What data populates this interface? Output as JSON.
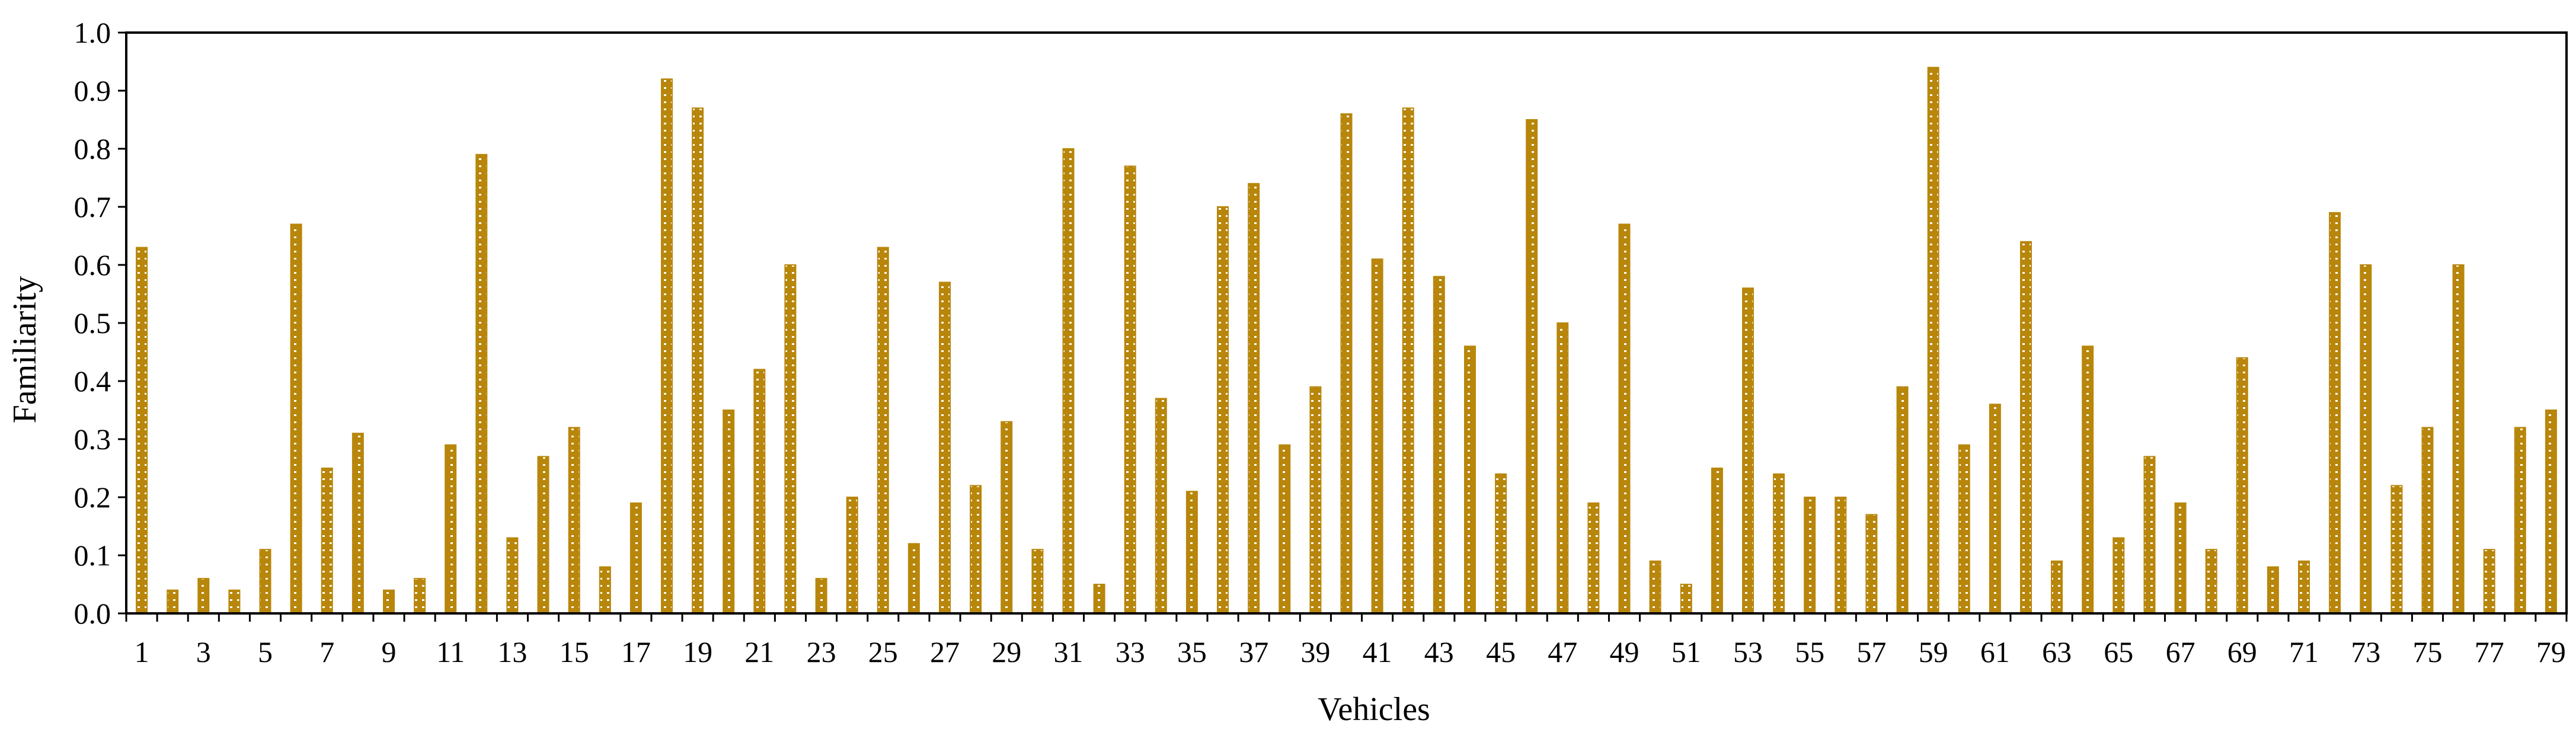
{
  "chart_data": {
    "type": "bar",
    "xlabel": "Vehicles",
    "ylabel": "Familiarity",
    "ylim": [
      0,
      1
    ],
    "yticks": [
      "0.0",
      "0.1",
      "0.2",
      "0.3",
      "0.4",
      "0.5",
      "0.6",
      "0.7",
      "0.8",
      "0.9",
      "1.0"
    ],
    "categories": [
      1,
      2,
      3,
      4,
      5,
      6,
      7,
      8,
      9,
      10,
      11,
      12,
      13,
      14,
      15,
      16,
      17,
      18,
      19,
      20,
      21,
      22,
      23,
      24,
      25,
      26,
      27,
      28,
      29,
      30,
      31,
      32,
      33,
      34,
      35,
      36,
      37,
      38,
      39,
      40,
      41,
      42,
      43,
      44,
      45,
      46,
      47,
      48,
      49,
      50,
      51,
      52,
      53,
      54,
      55,
      56,
      57,
      58,
      59,
      60,
      61,
      62,
      63,
      64,
      65,
      66,
      67,
      68,
      69,
      70,
      71,
      72,
      73,
      74,
      75,
      76,
      77,
      78,
      79
    ],
    "xtick_labels_shown": [
      1,
      3,
      5,
      7,
      9,
      11,
      13,
      15,
      17,
      19,
      21,
      23,
      25,
      27,
      29,
      31,
      33,
      35,
      37,
      39,
      41,
      43,
      45,
      47,
      49,
      51,
      53,
      55,
      57,
      59,
      61,
      63,
      65,
      67,
      69,
      71,
      73,
      75,
      77,
      79
    ],
    "values": [
      0.63,
      0.04,
      0.06,
      0.04,
      0.11,
      0.67,
      0.25,
      0.31,
      0.04,
      0.06,
      0.29,
      0.79,
      0.13,
      0.27,
      0.32,
      0.08,
      0.19,
      0.92,
      0.87,
      0.35,
      0.42,
      0.6,
      0.06,
      0.2,
      0.63,
      0.12,
      0.57,
      0.22,
      0.33,
      0.11,
      0.8,
      0.05,
      0.77,
      0.37,
      0.21,
      0.7,
      0.74,
      0.29,
      0.39,
      0.86,
      0.61,
      0.87,
      0.58,
      0.46,
      0.24,
      0.85,
      0.5,
      0.19,
      0.67,
      0.09,
      0.05,
      0.25,
      0.56,
      0.24,
      0.2,
      0.2,
      0.17,
      0.39,
      0.94,
      0.29,
      0.36,
      0.64,
      0.09,
      0.46,
      0.13,
      0.27,
      0.19,
      0.11,
      0.44,
      0.08,
      0.09,
      0.69,
      0.6,
      0.22,
      0.32,
      0.6,
      0.11,
      0.32,
      0.35
    ],
    "bar_color": "#B8860B",
    "bar_pattern": "dotted",
    "grid": false,
    "legend": "none"
  }
}
